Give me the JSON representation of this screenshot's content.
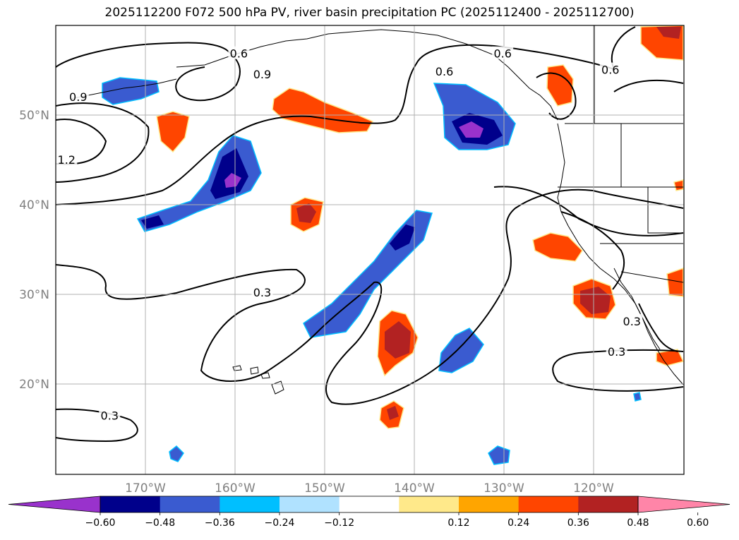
{
  "title": "2025112200 F072 500 hPa PV, river basin precipitation PC (2025112400 - 2025112700)",
  "map": {
    "lon_range": [
      -180,
      -110
    ],
    "lat_range": [
      10,
      60
    ],
    "lat_labels": [
      "20°N",
      "30°N",
      "40°N",
      "50°N"
    ],
    "lon_labels": [
      "170°W",
      "160°W",
      "150°W",
      "140°W",
      "130°W",
      "120°W"
    ],
    "contour_labels": [
      {
        "text": "0.6",
        "lon": -159.6,
        "lat": 56.8
      },
      {
        "text": "0.9",
        "lon": -157.0,
        "lat": 54.5
      },
      {
        "text": "0.9",
        "lon": -177.5,
        "lat": 52.0
      },
      {
        "text": "1.2",
        "lon": -178.8,
        "lat": 45.0
      },
      {
        "text": "0.6",
        "lon": -136.7,
        "lat": 54.8
      },
      {
        "text": "0.6",
        "lon": -130.2,
        "lat": 56.8
      },
      {
        "text": "0.6",
        "lon": -118.2,
        "lat": 55.0
      },
      {
        "text": "0.3",
        "lon": -157.0,
        "lat": 30.2
      },
      {
        "text": "0.3",
        "lon": -174.0,
        "lat": 16.5
      },
      {
        "text": "0.3",
        "lon": -117.5,
        "lat": 23.6
      },
      {
        "text": "0.3",
        "lon": -115.8,
        "lat": 27.0
      }
    ]
  },
  "colorbar": {
    "ticks": [
      "−0.60",
      "−0.48",
      "−0.36",
      "−0.24",
      "−0.12",
      "0.12",
      "0.24",
      "0.36",
      "0.48",
      "0.60"
    ],
    "colors": [
      "#9932cc",
      "#00008b",
      "#3a5bd0",
      "#00bfff",
      "#b0e2ff",
      "#ffffff",
      "#ffe98a",
      "#ffa500",
      "#ff4500",
      "#b22222",
      "#ff85a8"
    ]
  },
  "colors": {
    "negative_strong": "#9932cc",
    "negative": "#00008b",
    "negative_mid": "#3a5bd0",
    "negative_light": "#00bfff",
    "positive_light": "#ffe98a",
    "positive": "#ff4500",
    "positive_strong": "#b22222"
  }
}
